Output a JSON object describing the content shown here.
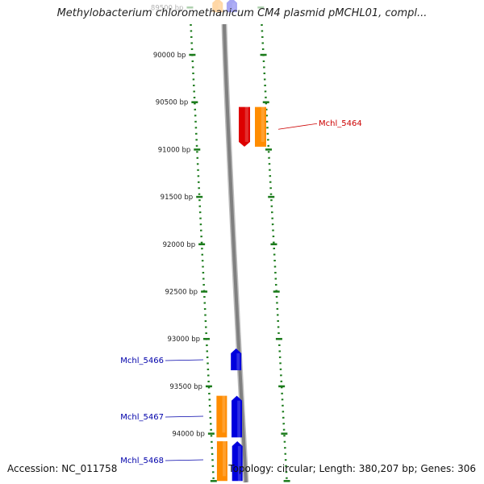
{
  "title": "Methylobacterium chloromethanicum CM4 plasmid pMCHL01, compl...",
  "footer": {
    "accession": "Accession: NC_011758",
    "topology": "Topology: circular; Length: 380,207 bp; Genes: 306"
  },
  "ruler": {
    "ticks": [
      {
        "bp": 89500,
        "label": "89500 bp",
        "faded": true
      },
      {
        "bp": 90000,
        "label": "90000 bp"
      },
      {
        "bp": 90500,
        "label": "90500 bp"
      },
      {
        "bp": 91000,
        "label": "91000 bp"
      },
      {
        "bp": 91500,
        "label": "91500 bp"
      },
      {
        "bp": 92000,
        "label": "92000 bp"
      },
      {
        "bp": 92500,
        "label": "92500 bp"
      },
      {
        "bp": 93000,
        "label": "93000 bp"
      },
      {
        "bp": 93500,
        "label": "93500 bp"
      },
      {
        "bp": 94000,
        "label": "94000 bp"
      },
      {
        "bp": 94500,
        "label": ""
      }
    ]
  },
  "genes": [
    {
      "name": "",
      "lane": "orange-left",
      "start": 89400,
      "end": 89550,
      "dir": "up",
      "faded": true
    },
    {
      "name": "",
      "lane": "blue-left",
      "start": 89400,
      "end": 89550,
      "dir": "up",
      "faded": true
    },
    {
      "name": "Mchl_5464",
      "lane": "red-right",
      "start": 90550,
      "end": 90970,
      "dir": "down",
      "label_color": "#cc0000",
      "label_side": "right"
    },
    {
      "name": "",
      "lane": "orange-right",
      "start": 90550,
      "end": 90970,
      "dir": "none"
    },
    {
      "name": "Mchl_5466",
      "lane": "blue-left",
      "start": 93100,
      "end": 93330,
      "dir": "up",
      "label_color": "#0000aa",
      "label_side": "left"
    },
    {
      "name": "Mchl_5467",
      "lane": "orange-left",
      "start": 93600,
      "end": 94040,
      "dir": "none",
      "label_color": "#0000aa",
      "label_side": "left"
    },
    {
      "name": "",
      "lane": "blue-left",
      "start": 93600,
      "end": 94040,
      "dir": "up"
    },
    {
      "name": "Mchl_5468",
      "lane": "orange-left",
      "start": 94080,
      "end": 94500,
      "dir": "none",
      "label_color": "#0000aa",
      "label_side": "left"
    },
    {
      "name": "",
      "lane": "blue-left",
      "start": 94080,
      "end": 94500,
      "dir": "up"
    }
  ],
  "colors": {
    "backbone": "#808080",
    "dotted_track": "#1a7a1a",
    "forward_gene": "#0000dd",
    "forward_neighbor": "#ff8c00",
    "reverse_gene": "#dd0000",
    "label_forward": "#0000aa",
    "label_reverse": "#cc0000"
  }
}
